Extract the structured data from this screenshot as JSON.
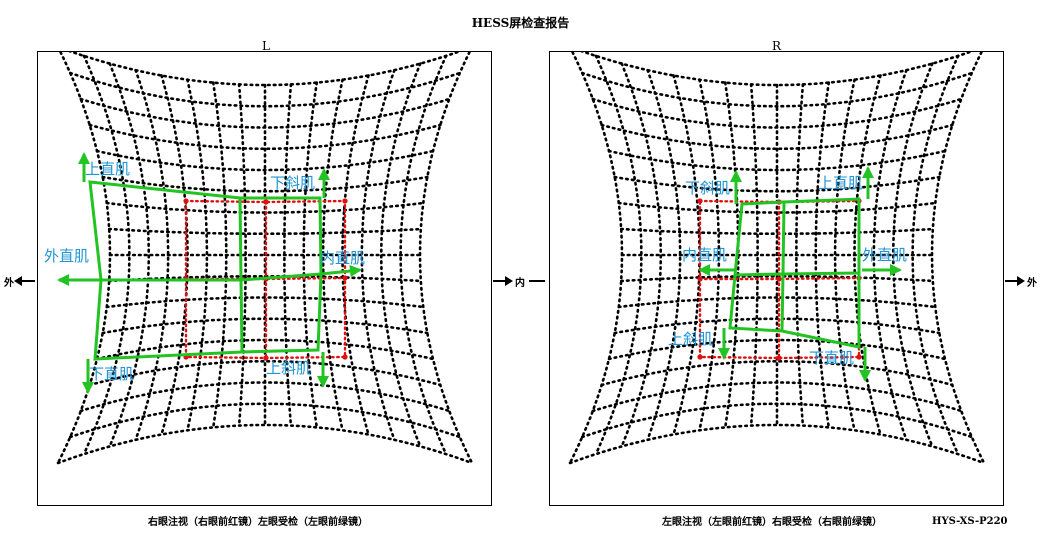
{
  "title": "HESS屏检查报告",
  "left_panel": {
    "label": "L",
    "caption": "右眼注视（右眼前红镜）左眼受检（左眼前绿镜）",
    "muscles": {
      "superior_rectus": "上直肌",
      "inferior_oblique": "下斜肌",
      "lateral_rectus": "外直肌",
      "medial_rectus": "内直肌",
      "inferior_rectus": "下直肌",
      "superior_oblique": "上斜肌"
    }
  },
  "right_panel": {
    "label": "R",
    "caption": "左眼注视（左眼前红镜）右眼受检（右眼前绿镜）",
    "muscles": {
      "inferior_oblique": "下斜肌",
      "superior_rectus": "上直肌",
      "medial_rectus": "内直肌",
      "lateral_rectus": "外直肌",
      "superior_oblique": "上斜肌",
      "inferior_rectus": "下直肌"
    }
  },
  "side_labels": {
    "far_left": "外",
    "center": "内",
    "far_right": "外"
  },
  "model": "HYS-XS-P220",
  "colors": {
    "grid_dots": "#000000",
    "red_plot": "#e01010",
    "green_plot": "#22c322",
    "muscle_label": "#1e95d6"
  }
}
